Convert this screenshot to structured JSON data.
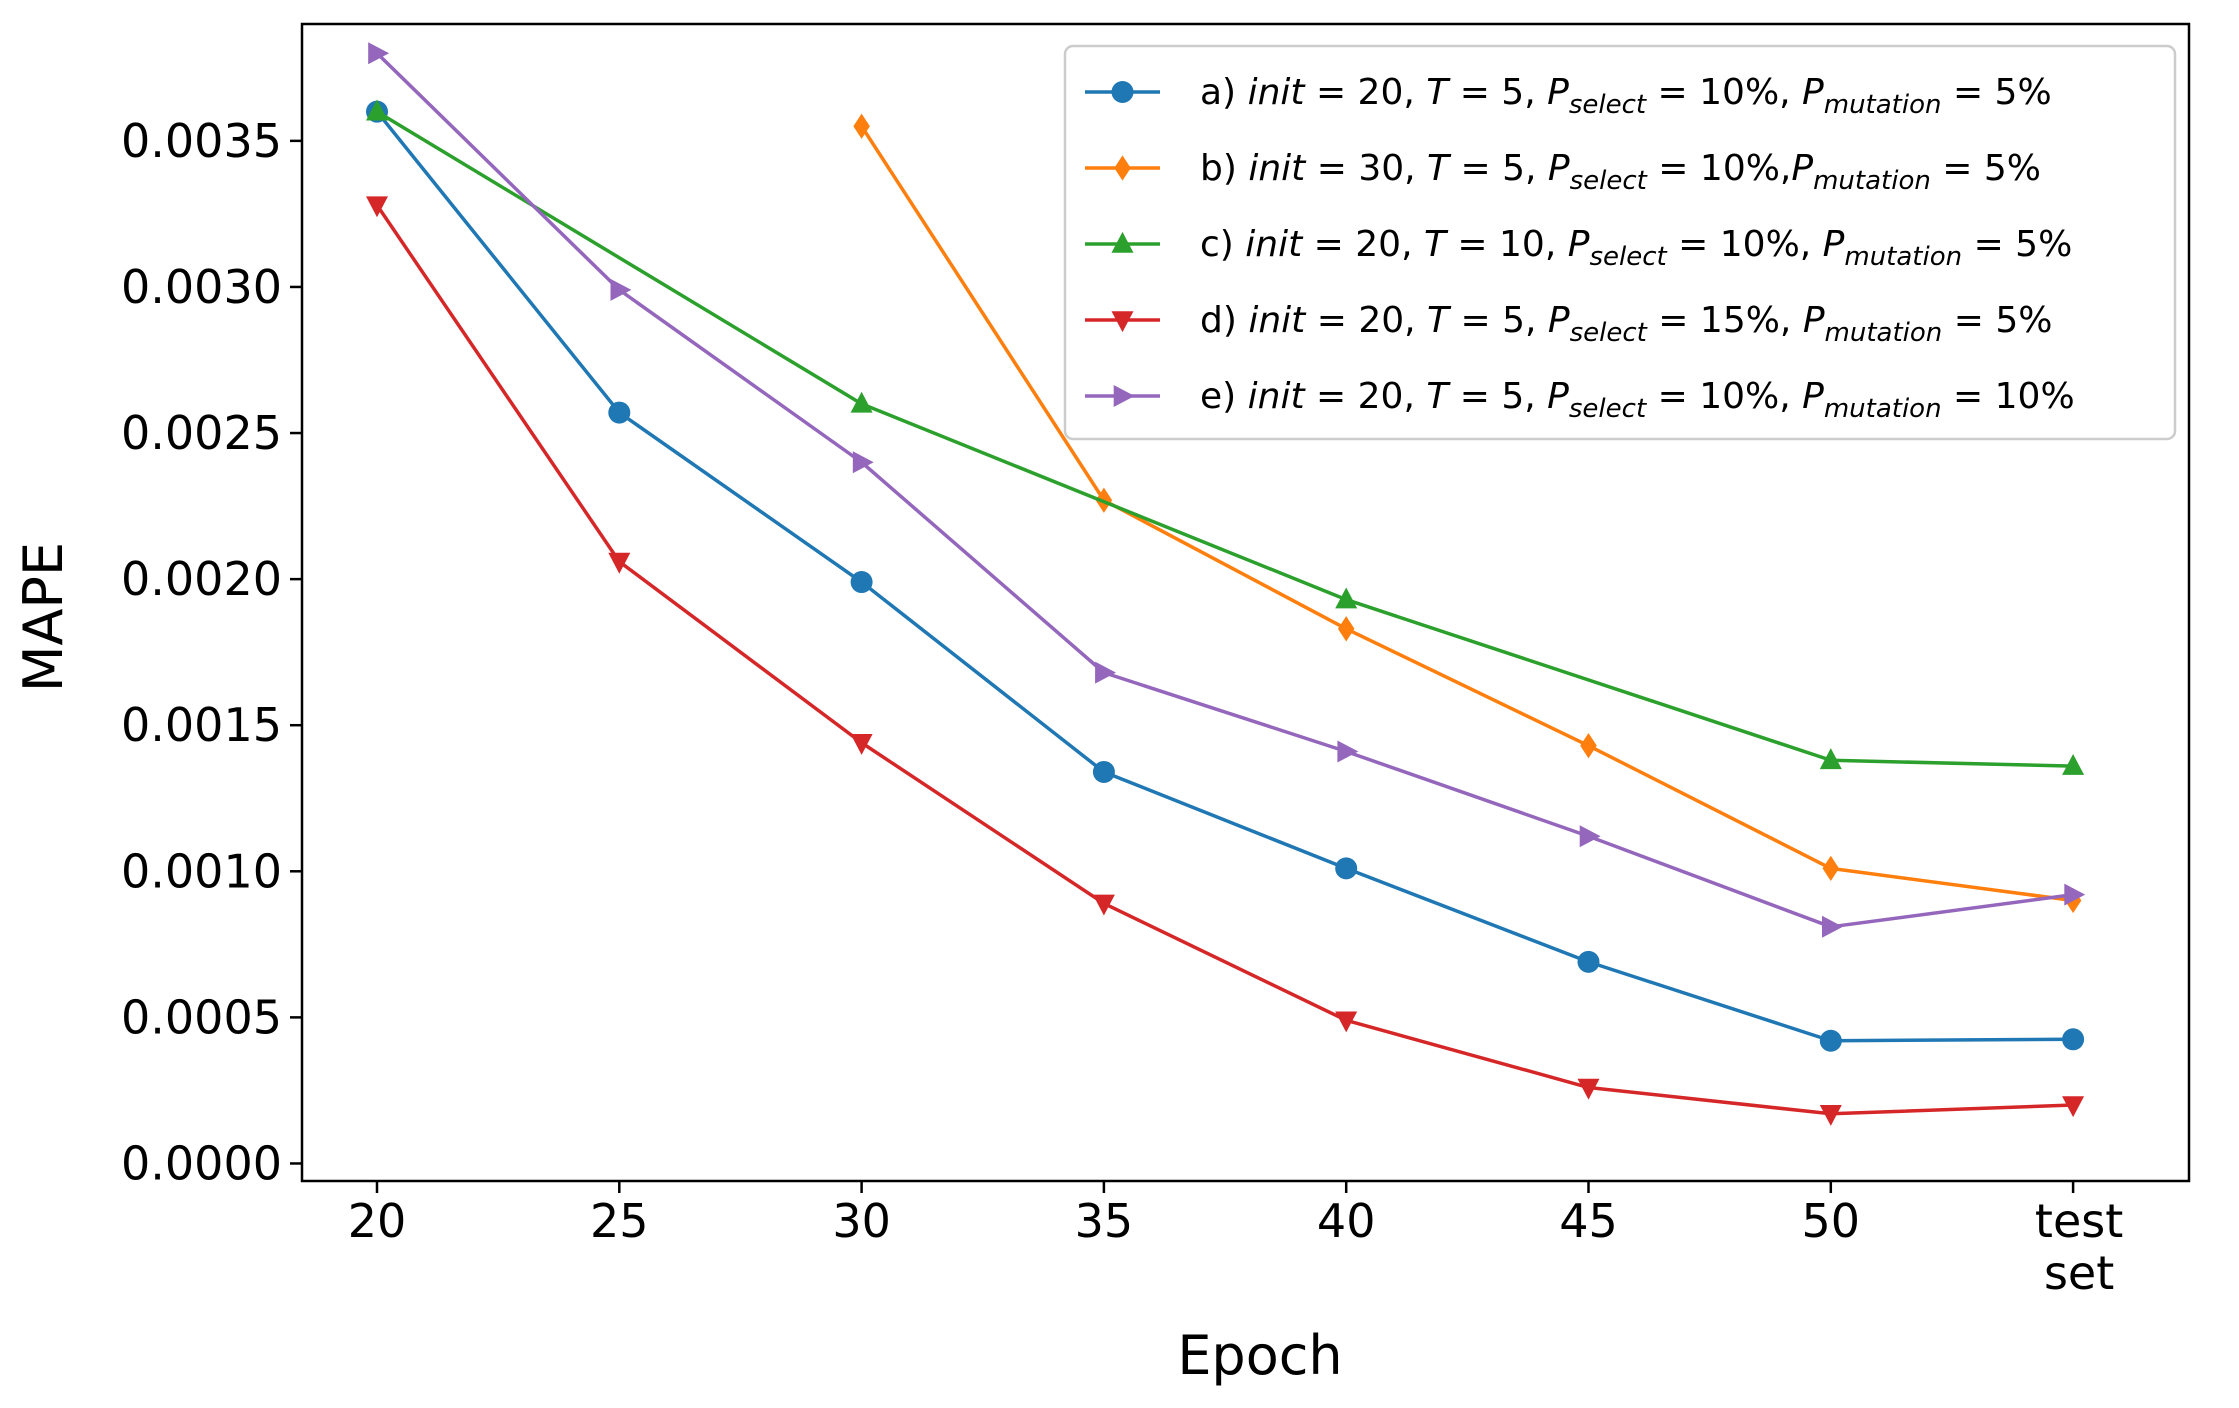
{
  "chart_data": {
    "type": "line",
    "title": "",
    "xlabel": "Epoch",
    "ylabel": "MAPE",
    "categories": [
      "20",
      "25",
      "30",
      "35",
      "40",
      "45",
      "50",
      "test set"
    ],
    "x_tick_labels": [
      [
        "20"
      ],
      [
        "25"
      ],
      [
        "30"
      ],
      [
        "35"
      ],
      [
        "40"
      ],
      [
        "45"
      ],
      [
        "50"
      ],
      [
        "test",
        "set"
      ]
    ],
    "y_ticks": [
      "0.0000",
      "0.0005",
      "0.0010",
      "0.0015",
      "0.0020",
      "0.0025",
      "0.0030",
      "0.0035"
    ],
    "ylim": [
      -6e-05,
      0.0039
    ],
    "grid": false,
    "legend_position": "top-right",
    "series": [
      {
        "name": "a) init = 20, T = 5, P_select = 10%, P_mutation = 5%",
        "legend_parts": [
          "a) ",
          "init",
          " = 20,  ",
          "T",
          " = 5,  ",
          "P",
          "select",
          " = 10%,  ",
          "P",
          "mutation",
          " = 5%"
        ],
        "color": "#1f77b4",
        "marker": "circle",
        "values": [
          0.0036,
          0.00257,
          0.00199,
          0.00134,
          0.00101,
          0.00069,
          0.00042,
          0.000425
        ]
      },
      {
        "name": "b) init = 30, T = 5, P_select = 10%, P_mutation = 5%",
        "legend_parts": [
          "b) ",
          "init",
          " = 30,  ",
          "T",
          " = 5,  ",
          "P",
          "select",
          " = 10%,",
          "P",
          "mutation",
          " = 5%"
        ],
        "color": "#ff7f0e",
        "marker": "diamond",
        "values": [
          null,
          null,
          0.00355,
          0.00227,
          0.00183,
          0.00143,
          0.00101,
          0.0009
        ]
      },
      {
        "name": "c) init = 20, T = 10, P_select = 10%, P_mutation = 5%",
        "legend_parts": [
          "c) ",
          "init",
          " = 20,  ",
          "T",
          " = 10,  ",
          "P",
          "select",
          " = 10%,  ",
          "P",
          "mutation",
          " = 5%"
        ],
        "color": "#2ca02c",
        "marker": "triangle-up",
        "values": [
          0.0036,
          null,
          0.0026,
          null,
          0.00193,
          null,
          0.00138,
          0.00136
        ]
      },
      {
        "name": "d) init = 20, T = 5, P_select = 15%, P_mutation = 5%",
        "legend_parts": [
          "d) ",
          "init",
          " = 20,  ",
          "T",
          " = 5,  ",
          "P",
          "select",
          " = 15%,  ",
          "P",
          "mutation",
          " = 5%"
        ],
        "color": "#d62728",
        "marker": "triangle-down",
        "values": [
          0.00328,
          0.00206,
          0.00144,
          0.00089,
          0.00049,
          0.00026,
          0.00017,
          0.0002
        ]
      },
      {
        "name": "e) init = 20, T = 5, P_select = 10%, P_mutation = 10%",
        "legend_parts": [
          "e) ",
          "init",
          " = 20,  ",
          "T",
          " = 5,  ",
          "P",
          "select",
          " = 10%,  ",
          "P",
          "mutation",
          " = 10%"
        ],
        "color": "#9467bd",
        "marker": "triangle-right",
        "values": [
          0.0038,
          0.00299,
          0.0024,
          0.00168,
          0.00141,
          0.00112,
          0.00081,
          0.00092
        ]
      }
    ]
  }
}
